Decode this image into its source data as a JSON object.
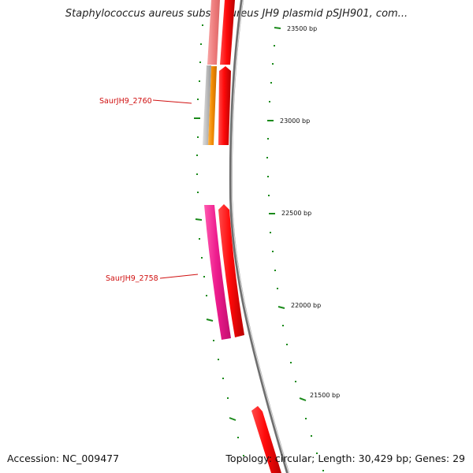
{
  "title": "Staphylococcus aureus subsp. aureus JH9 plasmid pSJH901, com...",
  "accession": "Accession: NC_009477",
  "summary": "Topology: circular; Length: 30,429 bp; Genes: 29",
  "colors": {
    "backbone": "#8a8a8a",
    "tick": "#1a8a1a",
    "gene_red": "#ee1111",
    "gene_pink": "#e8208a",
    "gene_salmon": "#ef8080",
    "gene_orange": "#f08a00",
    "gene_gray": "#b9b9b9",
    "label_text": "#d01010"
  },
  "scale_labels": [
    "23500 bp",
    "23000 bp",
    "22500 bp",
    "22000 bp",
    "21500 bp"
  ],
  "gene_labels": [
    "SaurJH9_2760",
    "SaurJH9_2758"
  ]
}
